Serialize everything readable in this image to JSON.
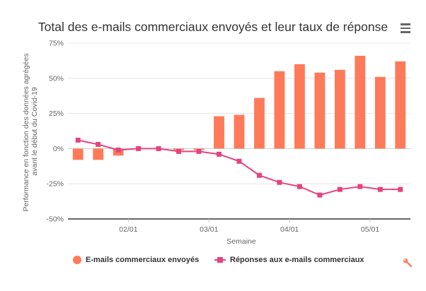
{
  "chart_data": {
    "type": "bar+line",
    "title": "Total des e-mails commerciaux envoyés et leur taux de réponse",
    "xlabel": "Semaine",
    "ylabel": "Performance en fonction des données agrégées avant le début du Covid-19",
    "ylabel_lines": [
      "Performance en fonction des données agrégées",
      "avant le début du Covid-19"
    ],
    "ylim": [
      -50,
      75
    ],
    "yticks": [
      75,
      50,
      25,
      0,
      -25,
      -50
    ],
    "ytick_labels": [
      "75%",
      "50%",
      "25%",
      "0%",
      "-25%",
      "-50%"
    ],
    "xtick_labels": [
      "02/01",
      "03/01",
      "04/01",
      "05/01"
    ],
    "xtick_positions": [
      3,
      7,
      11,
      15
    ],
    "grid": true,
    "legend_position": "bottom",
    "series": [
      {
        "name": "E-mails commerciaux envoyés",
        "kind": "bar",
        "color": "#ff7a59",
        "values": [
          -8,
          -8,
          -5,
          0,
          0,
          -1,
          -1,
          23,
          24,
          36,
          55,
          60,
          54,
          56,
          66,
          51,
          62
        ]
      },
      {
        "name": "Réponses aux e-mails commerciaux",
        "kind": "line",
        "color": "#e5437f",
        "values": [
          6,
          3,
          -1,
          0,
          0,
          -2,
          -2,
          -4,
          -9,
          -19,
          -24,
          -27,
          -33,
          -29,
          -27,
          -29,
          -29
        ]
      }
    ]
  },
  "icons": {
    "menu": "hamburger-menu-icon",
    "tool": "wrench-icon"
  }
}
